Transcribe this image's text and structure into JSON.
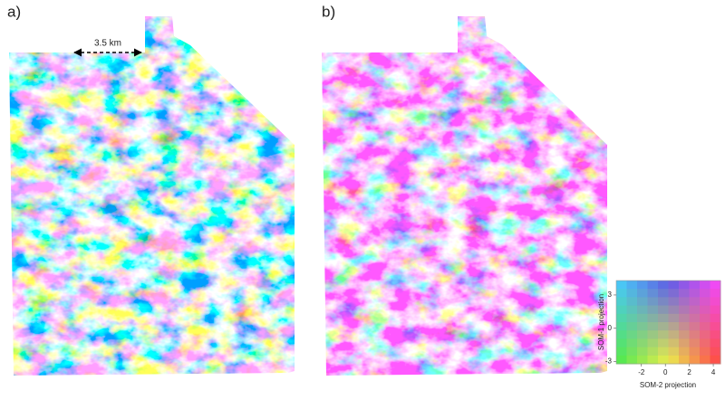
{
  "panels": [
    {
      "label": "a)"
    },
    {
      "label": "b)"
    }
  ],
  "scale_bar": {
    "label": "3.5 km"
  },
  "colorbar": {
    "xlabel": "SOM-2 projection",
    "ylabel": "SOM-1 projection",
    "xlim": [
      -4.1,
      4.6
    ],
    "xticks": [
      -2,
      0,
      2,
      4
    ],
    "ylim": [
      -3.2,
      4.3
    ],
    "yticks": [
      -3,
      0,
      3
    ]
  }
}
